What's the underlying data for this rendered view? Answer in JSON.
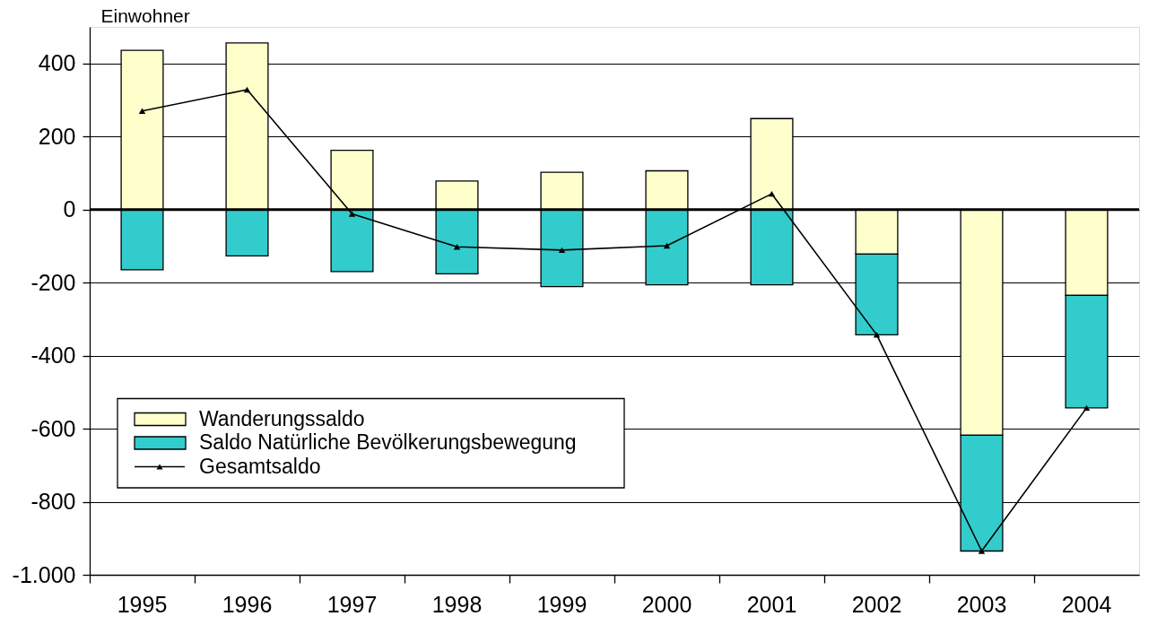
{
  "chart_data": {
    "type": "bar",
    "stacked": true,
    "ylabel": "Einwohner",
    "categories": [
      "1995",
      "1996",
      "1997",
      "1998",
      "1999",
      "2000",
      "2001",
      "2002",
      "2003",
      "2004"
    ],
    "series": [
      {
        "name": "Wanderungssaldo",
        "color": "#ffffcc",
        "values": [
          436,
          456,
          162,
          78,
          102,
          106,
          249,
          -122,
          -618,
          -235
        ]
      },
      {
        "name": "Saldo Natürliche Bevölkerungsbewegung",
        "color": "#33cccc",
        "values": [
          -165,
          -127,
          -170,
          -176,
          -211,
          -206,
          -206,
          -221,
          -317,
          -308
        ]
      },
      {
        "name": "Gesamtsaldo",
        "type": "line",
        "color": "#000000",
        "marker": "triangle",
        "line_style": "solid",
        "values": [
          270,
          328,
          -12,
          -102,
          -111,
          -99,
          43,
          -343,
          -935,
          -543
        ]
      }
    ],
    "ylim": [
      -1000,
      500
    ],
    "yticks": [
      {
        "value": -1000,
        "label": "-1.000"
      },
      -800,
      -600,
      -400,
      -200,
      0,
      200,
      400
    ],
    "grid": "y",
    "legend": "bottom left",
    "ref_lines": [
      {
        "axis": "y",
        "value": 0,
        "color": "#000000"
      }
    ]
  }
}
